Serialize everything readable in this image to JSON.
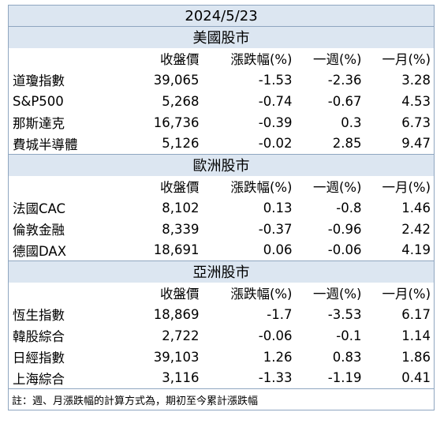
{
  "title": "2024/5/23",
  "headers": [
    "收盤價",
    "漲跌幅(%)",
    "一週(%)",
    "一月(%)"
  ],
  "sections": [
    {
      "name": "美國股市",
      "rows": [
        {
          "name": "道瓊指數",
          "close": "39,065",
          "change": "-1.53",
          "week": "-2.36",
          "month": "3.28"
        },
        {
          "name": "S&P500",
          "close": "5,268",
          "change": "-0.74",
          "week": "-0.67",
          "month": "4.53"
        },
        {
          "name": "那斯達克",
          "close": "16,736",
          "change": "-0.39",
          "week": "0.3",
          "month": "6.73"
        },
        {
          "name": "費城半導體",
          "close": "5,126",
          "change": "-0.02",
          "week": "2.85",
          "month": "9.47"
        }
      ]
    },
    {
      "name": "歐洲股市",
      "rows": [
        {
          "name": "法國CAC",
          "close": "8,102",
          "change": "0.13",
          "week": "-0.8",
          "month": "1.46"
        },
        {
          "name": "倫敦金融",
          "close": "8,339",
          "change": "-0.37",
          "week": "-0.96",
          "month": "2.42"
        },
        {
          "name": "德國DAX",
          "close": "18,691",
          "change": "0.06",
          "week": "-0.06",
          "month": "4.19"
        }
      ]
    },
    {
      "name": "亞洲股市",
      "rows": [
        {
          "name": "恆生指數",
          "close": "18,869",
          "change": "-1.7",
          "week": "-3.53",
          "month": "6.17"
        },
        {
          "name": "韓股綜合",
          "close": "2,722",
          "change": "-0.06",
          "week": "-0.1",
          "month": "1.14"
        },
        {
          "name": "日經指數",
          "close": "39,103",
          "change": "1.26",
          "week": "0.83",
          "month": "1.86"
        },
        {
          "name": "上海綜合",
          "close": "3,116",
          "change": "-1.33",
          "week": "-1.19",
          "month": "0.41"
        }
      ]
    }
  ],
  "note": "註：週、月漲跌幅的計算方式為，期初至今累計漲跌幅"
}
